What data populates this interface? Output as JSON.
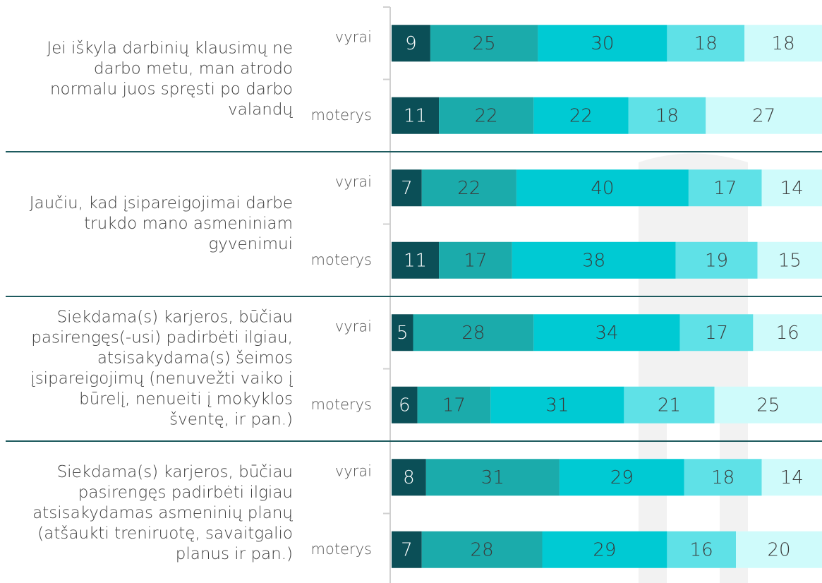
{
  "chart_data": {
    "type": "bar",
    "orientation": "horizontal",
    "stacked": true,
    "groups": [
      [
        "Jei iškyla darbinių klausimų ne",
        "darbo metu, man atrodo",
        "normalu juos spręsti po darbo",
        "valandų"
      ],
      [
        "Jaučiu, kad įsipareigojimai darbe",
        "trukdo mano asmeniniam",
        "gyvenimui"
      ],
      [
        "Siekdama(s) karjeros, būčiau",
        "pasirengęs(-usi) padirbėti ilgiau,",
        "atsisakydama(s) šeimos",
        "įsipareigojimų (nenuvežti vaiko į",
        "būrelį, nenueiti į mokyklos",
        "šventę, ir pan.)"
      ],
      [
        "Siekdama(s) karjeros, būčiau",
        "pasirengęs padirbėti ilgiau",
        "atsisakydamas asmeninių planų",
        "(atšaukti treniruotę, savaitgalio",
        "planus ir pan.)"
      ]
    ],
    "categories": [
      "vyrai",
      "moterys",
      "vyrai",
      "moterys",
      "vyrai",
      "moterys",
      "vyrai",
      "moterys"
    ],
    "series": [
      {
        "color": "#0b4f57",
        "values": [
          9,
          11,
          7,
          11,
          5,
          6,
          8,
          7
        ]
      },
      {
        "color": "#1babab",
        "values": [
          25,
          22,
          22,
          17,
          28,
          17,
          31,
          28
        ]
      },
      {
        "color": "#00cad3",
        "values": [
          30,
          22,
          40,
          38,
          34,
          31,
          29,
          29
        ]
      },
      {
        "color": "#5fe1e7",
        "values": [
          18,
          18,
          17,
          19,
          17,
          21,
          18,
          16
        ]
      },
      {
        "color": "#cffbfb",
        "values": [
          18,
          27,
          14,
          15,
          16,
          25,
          14,
          20
        ]
      }
    ],
    "xlim": [
      0,
      100
    ]
  }
}
